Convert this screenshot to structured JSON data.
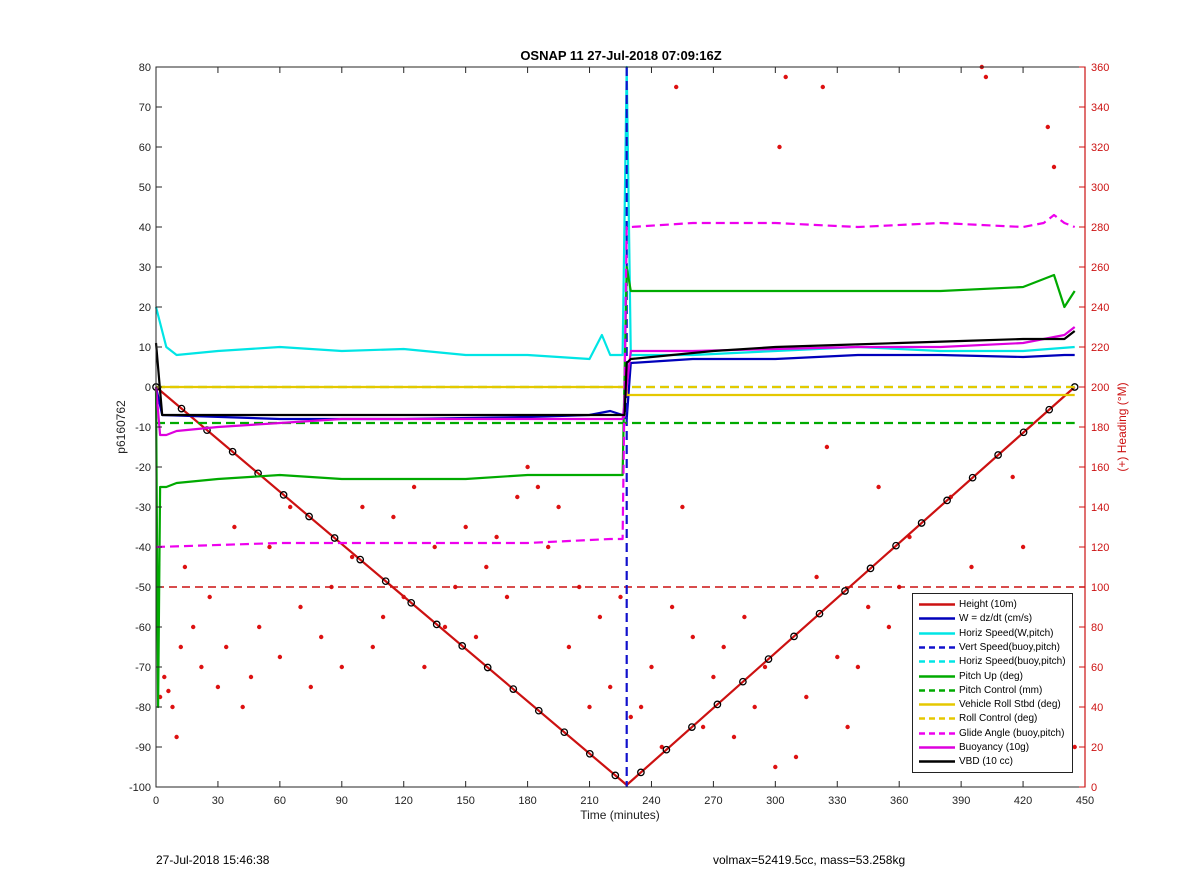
{
  "chart_data": {
    "type": "line",
    "title": "OSNAP 11 27-Jul-2018 07:09:16Z",
    "xlabel": "Time (minutes)",
    "ylabel": "p6160762",
    "y2label": "(+) Heading (°M)",
    "xlim": [
      0,
      450
    ],
    "ylim": [
      -100,
      80
    ],
    "y2lim": [
      0,
      360
    ],
    "x_ticks": [
      0,
      30,
      60,
      90,
      120,
      150,
      180,
      210,
      240,
      270,
      300,
      330,
      360,
      390,
      420,
      450
    ],
    "y_ticks": [
      -100,
      -90,
      -80,
      -70,
      -60,
      -50,
      -40,
      -30,
      -20,
      -10,
      0,
      10,
      20,
      30,
      40,
      50,
      60,
      70,
      80
    ],
    "y2_ticks": [
      0,
      20,
      40,
      60,
      80,
      100,
      120,
      140,
      160,
      180,
      200,
      220,
      240,
      260,
      280,
      300,
      320,
      340,
      360
    ],
    "grid": false,
    "legend_position": "bottom-right",
    "reference_line": {
      "y": -50,
      "color": "#cc1111"
    },
    "series": [
      {
        "name": "Height (10m)",
        "color": "#cc1111",
        "style": "solid",
        "markers": true,
        "x": [
          0,
          228,
          445
        ],
        "y": [
          0,
          -99.5,
          0
        ]
      },
      {
        "name": "W = dz/dt (cm/s)",
        "color": "#0000bb",
        "style": "solid",
        "x": [
          0,
          3,
          60,
          120,
          180,
          210,
          220,
          226,
          228,
          230,
          260,
          300,
          340,
          380,
          420,
          440,
          445
        ],
        "y": [
          0,
          -7,
          -8,
          -8,
          -7.5,
          -7,
          -6,
          -7,
          -8,
          6,
          7,
          7,
          8,
          8,
          7.5,
          8,
          8
        ]
      },
      {
        "name": "Horiz Speed(W,pitch)",
        "color": "#00e5e5",
        "style": "solid",
        "x": [
          0,
          5,
          10,
          30,
          60,
          90,
          120,
          150,
          180,
          210,
          216,
          220,
          226,
          228,
          230,
          260,
          300,
          340,
          380,
          420,
          445
        ],
        "y": [
          20,
          10,
          8,
          9,
          10,
          9,
          9.5,
          8,
          8,
          7,
          13,
          8,
          8,
          80,
          8,
          8,
          9,
          10,
          9,
          9,
          10
        ]
      },
      {
        "name": "Vert Speed(buoy,pitch)",
        "color": "#1111cc",
        "style": "dashed",
        "x": [
          228,
          228
        ],
        "y": [
          80,
          -100
        ]
      },
      {
        "name": "Horiz Speed(buoy,pitch)",
        "color": "#00e5e5",
        "style": "dashed",
        "x": [
          0,
          445
        ],
        "y": [
          0,
          0
        ]
      },
      {
        "name": "Pitch Up (deg)",
        "color": "#00aa00",
        "style": "solid",
        "x": [
          0,
          1,
          2,
          5,
          10,
          30,
          60,
          90,
          120,
          150,
          180,
          210,
          226,
          228,
          230,
          260,
          300,
          340,
          380,
          420,
          435,
          440,
          445
        ],
        "y": [
          0,
          -80,
          -25,
          -25,
          -24,
          -23,
          -22,
          -23,
          -23,
          -23,
          -22,
          -22,
          -22,
          30,
          24,
          24,
          24,
          24,
          24,
          25,
          28,
          20,
          24
        ]
      },
      {
        "name": "Pitch Control (mm)",
        "color": "#00aa00",
        "style": "dashed",
        "x": [
          0,
          227,
          228,
          445
        ],
        "y": [
          -9,
          -9,
          -9,
          -9
        ]
      },
      {
        "name": "Vehicle Roll Stbd (deg)",
        "color": "#e5c800",
        "style": "solid",
        "x": [
          0,
          228,
          228,
          445
        ],
        "y": [
          0,
          0,
          -2,
          -2
        ]
      },
      {
        "name": "Roll Control (deg)",
        "color": "#e5c800",
        "style": "dashed",
        "x": [
          0,
          445
        ],
        "y": [
          0,
          0
        ]
      },
      {
        "name": "Glide Angle (buoy,pitch)",
        "color": "#ee00ee",
        "style": "dashed",
        "x": [
          0,
          60,
          120,
          180,
          220,
          226,
          228,
          230,
          260,
          300,
          340,
          380,
          420,
          430,
          435,
          440,
          445
        ],
        "y": [
          -40,
          -39,
          -39,
          -39,
          -38,
          -38,
          40,
          40,
          41,
          41,
          40,
          41,
          40,
          41,
          43,
          41,
          40
        ]
      },
      {
        "name": "Buoyancy (10g)",
        "color": "#dd00dd",
        "style": "solid",
        "x": [
          0,
          2,
          5,
          10,
          30,
          60,
          90,
          120,
          150,
          180,
          210,
          226,
          228,
          230,
          260,
          300,
          340,
          380,
          420,
          440,
          445
        ],
        "y": [
          0,
          -12,
          -12,
          -11,
          -10,
          -9,
          -8,
          -8,
          -8,
          -8,
          -8,
          -8,
          0,
          9,
          9,
          9.5,
          10,
          10,
          11,
          13,
          15
        ]
      },
      {
        "name": "VBD (10 cc)",
        "color": "#000000",
        "style": "solid",
        "x": [
          0,
          3,
          227,
          228,
          230,
          270,
          300,
          330,
          360,
          390,
          420,
          440,
          445
        ],
        "y": [
          11,
          -7,
          -7,
          6,
          7,
          9,
          10,
          10.5,
          11,
          11.5,
          12,
          12,
          14
        ]
      }
    ],
    "heading_scatter": {
      "name": "Heading",
      "color": "#dd1111",
      "x": [
        2,
        4,
        6,
        8,
        10,
        12,
        14,
        18,
        22,
        26,
        30,
        34,
        38,
        42,
        46,
        50,
        55,
        60,
        65,
        70,
        75,
        80,
        85,
        90,
        95,
        100,
        105,
        110,
        115,
        120,
        125,
        130,
        135,
        140,
        145,
        150,
        155,
        160,
        165,
        170,
        175,
        180,
        185,
        190,
        195,
        200,
        205,
        210,
        215,
        220,
        225,
        230,
        235,
        240,
        245,
        250,
        252,
        255,
        260,
        265,
        270,
        275,
        280,
        285,
        290,
        295,
        300,
        302,
        305,
        310,
        315,
        320,
        323,
        325,
        330,
        335,
        340,
        345,
        350,
        355,
        360,
        365,
        370,
        375,
        380,
        385,
        390,
        395,
        400,
        402,
        405,
        410,
        415,
        420,
        425,
        430,
        432,
        435,
        440,
        445
      ],
      "y": [
        45,
        55,
        48,
        40,
        25,
        70,
        110,
        80,
        60,
        95,
        50,
        70,
        130,
        40,
        55,
        80,
        120,
        65,
        140,
        90,
        50,
        75,
        100,
        60,
        115,
        140,
        70,
        85,
        135,
        95,
        150,
        60,
        120,
        80,
        100,
        130,
        75,
        110,
        125,
        95,
        145,
        160,
        150,
        120,
        140,
        70,
        100,
        40,
        85,
        50,
        95,
        35,
        40,
        60,
        20,
        90,
        350,
        140,
        75,
        30,
        55,
        70,
        25,
        85,
        40,
        60,
        10,
        320,
        355,
        15,
        45,
        105,
        350,
        170,
        65,
        30,
        60,
        90,
        150,
        80,
        100,
        125,
        45,
        60,
        30,
        145,
        75,
        110,
        360,
        355,
        90,
        50,
        155,
        120,
        40,
        95,
        330,
        310,
        65,
        20
      ]
    }
  },
  "footer": {
    "left": "27-Jul-2018 15:46:38",
    "right": "volmax=52419.5cc, mass=53.258kg"
  }
}
